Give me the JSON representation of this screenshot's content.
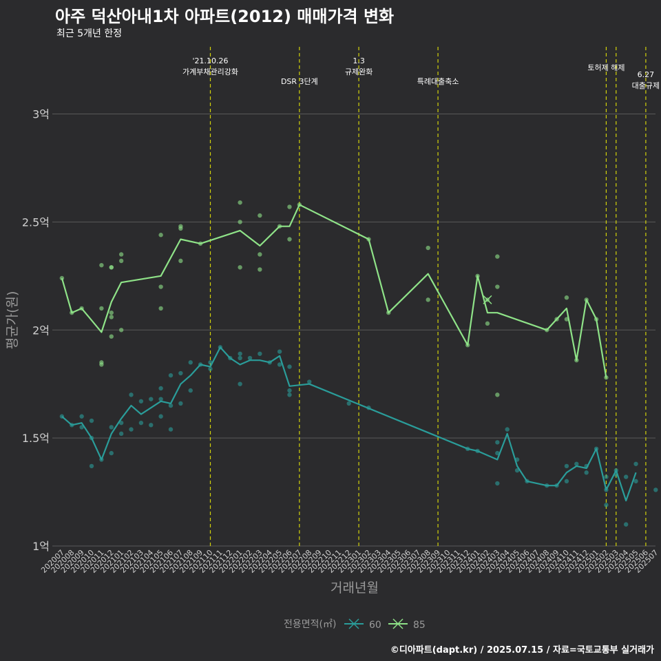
{
  "title": "아주 덕산아내1차 아파트(2012) 매매가격 변화",
  "subtitle": "최근 5개년 한정",
  "caption": "©디아파트(dapt.kr) / 2025.07.15 / 자료=국토교통부 실거래가",
  "colors": {
    "background": "#2b2b2d",
    "grid": "#5a5a5a",
    "series60": "#2a9d9a",
    "series85": "#8fe388",
    "event_line": "#d4d40a"
  },
  "chart_data": {
    "type": "line",
    "title": "아주 덕산아내1차 아파트(2012) 매매가격 변화",
    "subtitle": "최근 5개년 한정",
    "xlabel": "거래년월",
    "ylabel": "평균가(원)",
    "ylim": [
      1.0,
      3.33
    ],
    "y_ticks": [
      {
        "value": 1.0,
        "label": "1억"
      },
      {
        "value": 1.5,
        "label": "1.5억"
      },
      {
        "value": 2.0,
        "label": "2억"
      },
      {
        "value": 2.5,
        "label": "2.5억"
      },
      {
        "value": 3.0,
        "label": "3억"
      }
    ],
    "x_range": [
      "202007",
      "202507"
    ],
    "x_ticks": [
      "202007",
      "202008",
      "202009",
      "202010",
      "202011",
      "202012",
      "202101",
      "202102",
      "202103",
      "202104",
      "202105",
      "202106",
      "202107",
      "202108",
      "202109",
      "202110",
      "202111",
      "202112",
      "202201",
      "202202",
      "202203",
      "202204",
      "202205",
      "202206",
      "202207",
      "202208",
      "202209",
      "202210",
      "202211",
      "202212",
      "202301",
      "202302",
      "202303",
      "202304",
      "202305",
      "202306",
      "202307",
      "202308",
      "202309",
      "202310",
      "202311",
      "202312",
      "202401",
      "202402",
      "202403",
      "202404",
      "202405",
      "202406",
      "202407",
      "202408",
      "202409",
      "202410",
      "202411",
      "202412",
      "202501",
      "202502",
      "202503",
      "202504",
      "202505",
      "202506",
      "202507"
    ],
    "grid": true,
    "legend": {
      "title": "전용면적(㎡)",
      "position": "bottom",
      "entries": [
        "60",
        "85"
      ]
    },
    "events": [
      {
        "x": "202110",
        "label": "'21.10.26\n가계부채관리강화"
      },
      {
        "x": "202207",
        "label": "DSR 3단계"
      },
      {
        "x": "202301",
        "label": "1.3\n규제완화"
      },
      {
        "x": "202309",
        "label": "특례대출축소"
      },
      {
        "x": "202502",
        "label": "토허제 해제"
      },
      {
        "x": "202503",
        "label": ""
      },
      {
        "x": "202506",
        "label": "6.27\n대출규제"
      }
    ],
    "series": [
      {
        "name": "60",
        "line": [
          [
            "202007",
            1.6
          ],
          [
            "202008",
            1.56
          ],
          [
            "202009",
            1.57
          ],
          [
            "202010",
            1.5
          ],
          [
            "202011",
            1.4
          ],
          [
            "202012",
            1.52
          ],
          [
            "202101",
            1.59
          ],
          [
            "202102",
            1.65
          ],
          [
            "202103",
            1.61
          ],
          [
            "202104",
            1.64
          ],
          [
            "202105",
            1.67
          ],
          [
            "202106",
            1.66
          ],
          [
            "202107",
            1.75
          ],
          [
            "202108",
            1.79
          ],
          [
            "202109",
            1.84
          ],
          [
            "202110",
            1.83
          ],
          [
            "202111",
            1.92
          ],
          [
            "202112",
            1.87
          ],
          [
            "202201",
            1.84
          ],
          [
            "202202",
            1.86
          ],
          [
            "202203",
            1.86
          ],
          [
            "202204",
            1.85
          ],
          [
            "202205",
            1.88
          ],
          [
            "202206",
            1.74
          ],
          [
            "202208",
            1.75
          ],
          [
            "202312",
            1.45
          ],
          [
            "202401",
            1.44
          ],
          [
            "202403",
            1.4
          ],
          [
            "202404",
            1.52
          ],
          [
            "202405",
            1.37
          ],
          [
            "202406",
            1.3
          ],
          [
            "202408",
            1.28
          ],
          [
            "202409",
            1.28
          ],
          [
            "202410",
            1.34
          ],
          [
            "202411",
            1.37
          ],
          [
            "202412",
            1.36
          ],
          [
            "202501",
            1.45
          ],
          [
            "202502",
            1.26
          ],
          [
            "202503",
            1.35
          ],
          [
            "202504",
            1.21
          ],
          [
            "202505",
            1.34
          ]
        ],
        "points": [
          [
            "202007",
            1.6
          ],
          [
            "202008",
            1.56
          ],
          [
            "202009",
            1.6
          ],
          [
            "202009",
            1.55
          ],
          [
            "202010",
            1.58
          ],
          [
            "202010",
            1.5
          ],
          [
            "202010",
            1.37
          ],
          [
            "202011",
            1.4
          ],
          [
            "202012",
            1.55
          ],
          [
            "202012",
            1.43
          ],
          [
            "202101",
            1.57
          ],
          [
            "202101",
            1.52
          ],
          [
            "202102",
            1.7
          ],
          [
            "202102",
            1.54
          ],
          [
            "202103",
            1.67
          ],
          [
            "202103",
            1.57
          ],
          [
            "202104",
            1.68
          ],
          [
            "202104",
            1.56
          ],
          [
            "202105",
            1.68
          ],
          [
            "202105",
            1.73
          ],
          [
            "202105",
            1.6
          ],
          [
            "202106",
            1.79
          ],
          [
            "202106",
            1.65
          ],
          [
            "202106",
            1.54
          ],
          [
            "202107",
            1.8
          ],
          [
            "202107",
            1.66
          ],
          [
            "202108",
            1.85
          ],
          [
            "202108",
            1.72
          ],
          [
            "202109",
            1.84
          ],
          [
            "202110",
            1.85
          ],
          [
            "202110",
            1.82
          ],
          [
            "202111",
            1.92
          ],
          [
            "202112",
            1.87
          ],
          [
            "202201",
            1.89
          ],
          [
            "202201",
            1.87
          ],
          [
            "202201",
            1.75
          ],
          [
            "202202",
            1.87
          ],
          [
            "202203",
            1.89
          ],
          [
            "202204",
            1.85
          ],
          [
            "202205",
            1.9
          ],
          [
            "202205",
            1.84
          ],
          [
            "202206",
            1.83
          ],
          [
            "202206",
            1.72
          ],
          [
            "202206",
            1.7
          ],
          [
            "202208",
            1.76
          ],
          [
            "202212",
            1.66
          ],
          [
            "202302",
            1.64
          ],
          [
            "202312",
            1.45
          ],
          [
            "202401",
            1.44
          ],
          [
            "202403",
            1.48
          ],
          [
            "202403",
            1.43
          ],
          [
            "202403",
            1.29
          ],
          [
            "202404",
            1.54
          ],
          [
            "202405",
            1.4
          ],
          [
            "202405",
            1.35
          ],
          [
            "202406",
            1.3
          ],
          [
            "202408",
            1.28
          ],
          [
            "202409",
            1.28
          ],
          [
            "202410",
            1.37
          ],
          [
            "202410",
            1.3
          ],
          [
            "202411",
            1.38
          ],
          [
            "202412",
            1.37
          ],
          [
            "202412",
            1.34
          ],
          [
            "202501",
            1.45
          ],
          [
            "202502",
            1.32
          ],
          [
            "202502",
            1.26
          ],
          [
            "202502",
            1.19
          ],
          [
            "202503",
            1.35
          ],
          [
            "202503",
            1.33
          ],
          [
            "202504",
            1.32
          ],
          [
            "202504",
            1.1
          ],
          [
            "202505",
            1.38
          ],
          [
            "202505",
            1.3
          ],
          [
            "202507",
            1.26
          ]
        ]
      },
      {
        "name": "85",
        "line": [
          [
            "202007",
            2.24
          ],
          [
            "202008",
            2.08
          ],
          [
            "202009",
            2.1
          ],
          [
            "202011",
            1.99
          ],
          [
            "202012",
            2.13
          ],
          [
            "202101",
            2.22
          ],
          [
            "202105",
            2.25
          ],
          [
            "202107",
            2.42
          ],
          [
            "202109",
            2.4
          ],
          [
            "202201",
            2.46
          ],
          [
            "202203",
            2.39
          ],
          [
            "202205",
            2.48
          ],
          [
            "202206",
            2.48
          ],
          [
            "202207",
            2.58
          ],
          [
            "202302",
            2.42
          ],
          [
            "202304",
            2.08
          ],
          [
            "202308",
            2.26
          ],
          [
            "202312",
            1.93
          ],
          [
            "202401",
            2.25
          ],
          [
            "202402",
            2.08
          ],
          [
            "202403",
            2.08
          ],
          [
            "202408",
            2.0
          ],
          [
            "202410",
            2.1
          ],
          [
            "202411",
            1.86
          ],
          [
            "202412",
            2.14
          ],
          [
            "202501",
            2.05
          ],
          [
            "202502",
            1.78
          ]
        ],
        "points": [
          [
            "202007",
            2.24
          ],
          [
            "202008",
            2.08
          ],
          [
            "202009",
            2.1
          ],
          [
            "202011",
            2.3
          ],
          [
            "202011",
            2.1
          ],
          [
            "202011",
            1.85
          ],
          [
            "202011",
            1.84
          ],
          [
            "202012",
            2.29
          ],
          [
            "202012",
            2.29
          ],
          [
            "202012",
            2.08
          ],
          [
            "202012",
            2.06
          ],
          [
            "202012",
            1.97
          ],
          [
            "202101",
            2.35
          ],
          [
            "202101",
            2.32
          ],
          [
            "202101",
            2.0
          ],
          [
            "202105",
            2.44
          ],
          [
            "202105",
            2.2
          ],
          [
            "202105",
            2.1
          ],
          [
            "202107",
            2.48
          ],
          [
            "202107",
            2.47
          ],
          [
            "202107",
            2.32
          ],
          [
            "202109",
            2.4
          ],
          [
            "202201",
            2.59
          ],
          [
            "202201",
            2.5
          ],
          [
            "202201",
            2.29
          ],
          [
            "202203",
            2.53
          ],
          [
            "202203",
            2.35
          ],
          [
            "202203",
            2.28
          ],
          [
            "202205",
            2.48
          ],
          [
            "202206",
            2.57
          ],
          [
            "202206",
            2.42
          ],
          [
            "202207",
            2.58
          ],
          [
            "202302",
            2.42
          ],
          [
            "202304",
            2.08
          ],
          [
            "202308",
            2.38
          ],
          [
            "202308",
            2.14
          ],
          [
            "202312",
            1.93
          ],
          [
            "202401",
            2.25
          ],
          [
            "202402",
            2.14
          ],
          [
            "202402",
            2.03
          ],
          [
            "202403",
            2.34
          ],
          [
            "202403",
            2.2
          ],
          [
            "202403",
            1.7
          ],
          [
            "202408",
            2.0
          ],
          [
            "202409",
            2.05
          ],
          [
            "202410",
            2.15
          ],
          [
            "202410",
            2.05
          ],
          [
            "202411",
            1.86
          ],
          [
            "202412",
            2.14
          ],
          [
            "202501",
            2.05
          ],
          [
            "202502",
            1.78
          ]
        ],
        "cross_points": [
          [
            "202402",
            2.14
          ]
        ]
      }
    ]
  }
}
